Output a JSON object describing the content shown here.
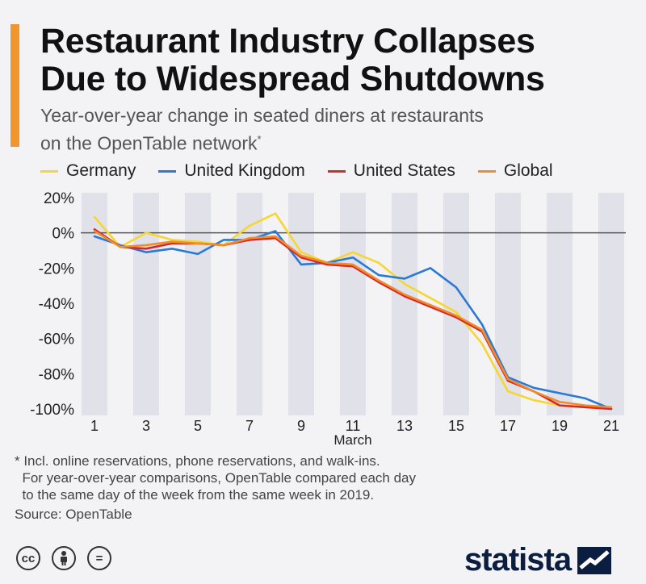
{
  "colors": {
    "accent": "#f0962d",
    "germany": "#f5d633",
    "uk": "#2a7ad5",
    "us": "#d62a2a",
    "global": "#f08c2c",
    "band": "#e1e1ea",
    "zero": "#555555"
  },
  "header": {
    "title_line1": "Restaurant Industry Collapses",
    "title_line2": "Due to Widespread Shutdowns",
    "subtitle_line1": "Year-over-year change in seated diners at restaurants",
    "subtitle_line2": "on the OpenTable network",
    "subtitle_marker": "*"
  },
  "chart_data": {
    "type": "line",
    "xlabel": "March",
    "x": [
      1,
      2,
      3,
      4,
      5,
      6,
      7,
      8,
      9,
      10,
      11,
      12,
      13,
      14,
      15,
      16,
      17,
      18,
      19,
      20,
      21
    ],
    "x_tick_labels": [
      "1",
      "3",
      "5",
      "7",
      "9",
      "11",
      "13",
      "15",
      "17",
      "19",
      "21"
    ],
    "ylim": [
      -100,
      20
    ],
    "y_ticks": [
      20,
      0,
      -20,
      -40,
      -60,
      -80,
      -100
    ],
    "y_tick_labels": [
      "20%",
      "0%",
      "-20%",
      "-40%",
      "-60%",
      "-80%",
      "-100%"
    ],
    "legend_position": "top",
    "series": [
      {
        "name": "Germany",
        "color_key": "germany",
        "values": [
          9,
          -8,
          0,
          -4,
          -5,
          -7,
          4,
          11,
          -11,
          -17,
          -11,
          -17,
          -29,
          -37,
          -45,
          -63,
          -90,
          -95,
          -98,
          -99,
          -100
        ]
      },
      {
        "name": "United Kingdom",
        "color_key": "uk",
        "values": [
          -2,
          -7,
          -11,
          -9,
          -12,
          -4,
          -4,
          1,
          -18,
          -17,
          -14,
          -24,
          -26,
          -20,
          -31,
          -52,
          -82,
          -88,
          -91,
          -94,
          -100
        ]
      },
      {
        "name": "United States",
        "color_key": "us",
        "values": [
          2,
          -8,
          -9,
          -6,
          -6,
          -7,
          -4,
          -3,
          -14,
          -18,
          -19,
          -28,
          -36,
          -42,
          -48,
          -56,
          -84,
          -90,
          -98,
          -99,
          -100
        ]
      },
      {
        "name": "Global",
        "color_key": "global",
        "values": [
          1,
          -8,
          -7,
          -5,
          -6,
          -7,
          -3,
          -2,
          -13,
          -17,
          -18,
          -27,
          -35,
          -41,
          -47,
          -55,
          -83,
          -90,
          -96,
          -98,
          -99
        ]
      }
    ]
  },
  "footnote": {
    "line1": "* Incl. online reservations, phone reservations, and walk-ins.",
    "line2": "  For year-over-year comparisons, OpenTable compared each day",
    "line3": "  to the same day of the week from the same week in 2019."
  },
  "source": "Source: OpenTable",
  "icons": {
    "cc": "cc-icon",
    "by": "person-icon",
    "nd": "equals-icon"
  },
  "cc_labels": {
    "cc": "cc",
    "nd": "="
  },
  "brand": {
    "name": "statista"
  }
}
